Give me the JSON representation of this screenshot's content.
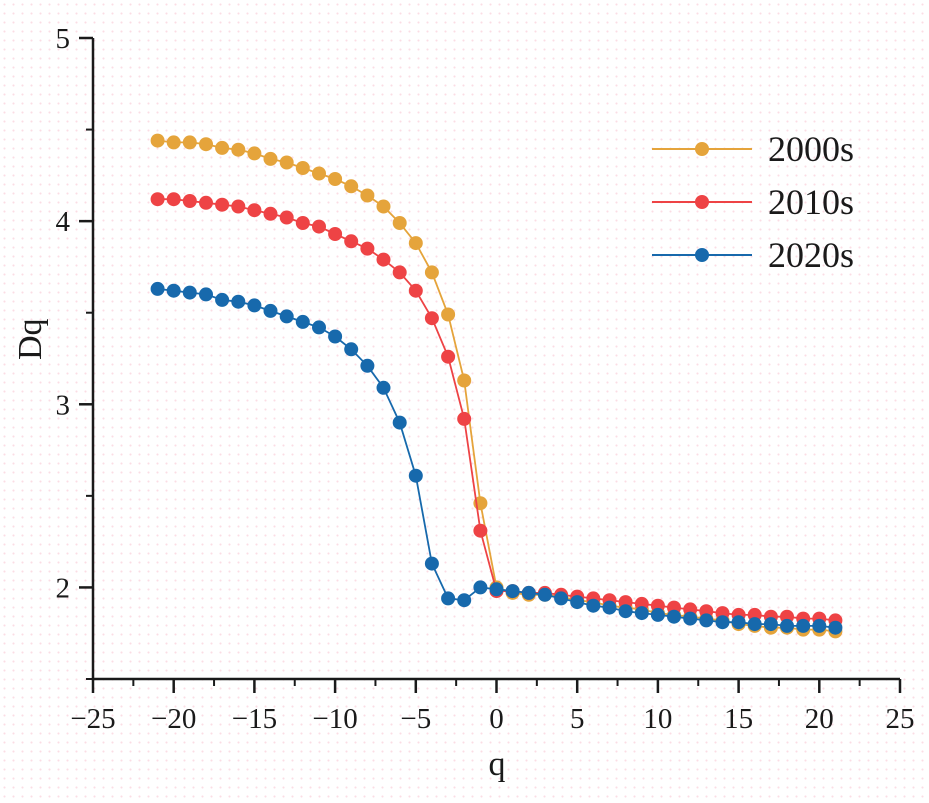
{
  "figure": {
    "x_axis_title": "q",
    "y_axis_title": "Dq",
    "colors": {
      "s2000": "#e5a43b",
      "s2010": "#ee4345",
      "s2020": "#1769ac",
      "axis": "#1a1a1a"
    }
  },
  "legend": {
    "items": [
      {
        "label": "2000s",
        "color": "#e5a43b"
      },
      {
        "label": "2010s",
        "color": "#ee4345"
      },
      {
        "label": "2020s",
        "color": "#1769ac"
      }
    ]
  },
  "chart_data": {
    "type": "line",
    "title": "",
    "xlabel": "q",
    "ylabel": "Dq",
    "xlim": [
      -25,
      25
    ],
    "ylim": [
      1.5,
      5
    ],
    "xticks": [
      -25,
      -20,
      -15,
      -10,
      -5,
      0,
      5,
      10,
      15,
      20,
      25
    ],
    "xticks_minor": [
      -22.5,
      -17.5,
      -12.5,
      -7.5,
      -2.5,
      2.5,
      7.5,
      12.5,
      17.5,
      22.5
    ],
    "yticks": [
      2,
      3,
      4,
      5
    ],
    "yticks_minor": [
      1.5,
      2.5,
      3.5,
      4.5
    ],
    "grid": false,
    "legend_position": "upper right",
    "marker": "circle",
    "x": [
      -21,
      -20,
      -19,
      -18,
      -17,
      -16,
      -15,
      -14,
      -13,
      -12,
      -11,
      -10,
      -9,
      -8,
      -7,
      -6,
      -5,
      -4,
      -3,
      -2,
      -1,
      0,
      1,
      2,
      3,
      4,
      5,
      6,
      7,
      8,
      9,
      10,
      11,
      12,
      13,
      14,
      15,
      16,
      17,
      18,
      19,
      20,
      21
    ],
    "series": [
      {
        "name": "2000s",
        "color": "#e5a43b",
        "values": [
          4.44,
          4.43,
          4.43,
          4.42,
          4.4,
          4.39,
          4.37,
          4.34,
          4.32,
          4.29,
          4.26,
          4.23,
          4.19,
          4.14,
          4.08,
          3.99,
          3.88,
          3.72,
          3.49,
          3.13,
          2.46,
          2.0,
          1.97,
          1.96,
          1.96,
          1.95,
          1.93,
          1.92,
          1.9,
          1.89,
          1.88,
          1.86,
          1.85,
          1.84,
          1.83,
          1.82,
          1.8,
          1.79,
          1.78,
          1.78,
          1.77,
          1.77,
          1.76
        ]
      },
      {
        "name": "2010s",
        "color": "#ee4345",
        "values": [
          4.12,
          4.12,
          4.11,
          4.1,
          4.09,
          4.08,
          4.06,
          4.04,
          4.02,
          3.99,
          3.97,
          3.93,
          3.89,
          3.85,
          3.79,
          3.72,
          3.62,
          3.47,
          3.26,
          2.92,
          2.31,
          1.98,
          1.98,
          1.97,
          1.97,
          1.96,
          1.95,
          1.94,
          1.93,
          1.92,
          1.91,
          1.9,
          1.89,
          1.88,
          1.87,
          1.86,
          1.85,
          1.85,
          1.84,
          1.84,
          1.83,
          1.83,
          1.82
        ]
      },
      {
        "name": "2020s",
        "color": "#1769ac",
        "values": [
          3.63,
          3.62,
          3.61,
          3.6,
          3.57,
          3.56,
          3.54,
          3.51,
          3.48,
          3.45,
          3.42,
          3.37,
          3.3,
          3.21,
          3.09,
          2.9,
          2.61,
          2.13,
          1.94,
          1.93,
          2.0,
          1.99,
          1.98,
          1.97,
          1.96,
          1.94,
          1.92,
          1.9,
          1.89,
          1.87,
          1.86,
          1.85,
          1.84,
          1.83,
          1.82,
          1.81,
          1.81,
          1.8,
          1.8,
          1.79,
          1.79,
          1.79,
          1.78
        ]
      }
    ]
  }
}
